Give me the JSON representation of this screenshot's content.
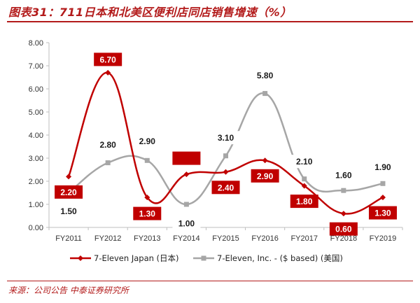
{
  "title": "图表31：711日本和北美区便利店同店销售增速（%）",
  "source": "来源：公司公告 中泰证券研究所",
  "colors": {
    "japan": "#c00000",
    "us": "#a6a6a6",
    "accent": "#b31b1b"
  },
  "chart_data": {
    "type": "line",
    "categories": [
      "FY2011",
      "FY2012",
      "FY2013",
      "FY2014",
      "FY2015",
      "FY2016",
      "FY2017",
      "FY2018",
      "FY2019"
    ],
    "ylim": [
      0,
      8
    ],
    "yticks": [
      "0.00",
      "1.00",
      "2.00",
      "3.00",
      "4.00",
      "5.00",
      "6.00",
      "7.00",
      "8.00"
    ],
    "grid": false,
    "legend_position": "bottom",
    "series": [
      {
        "name": "7-Eleven Japan (日本)",
        "values": [
          2.2,
          6.7,
          1.3,
          2.3,
          2.4,
          2.9,
          1.8,
          0.6,
          1.3
        ],
        "labels": [
          "2.20",
          "6.70",
          "1.30",
          "",
          "2.40",
          "2.90",
          "1.80",
          "0.60",
          "1.30"
        ]
      },
      {
        "name": "7-Eleven, Inc. - ($ based)  (美国)",
        "values": [
          1.5,
          2.8,
          2.9,
          1.0,
          3.1,
          5.8,
          2.1,
          1.6,
          1.9
        ],
        "labels": [
          "1.50",
          "2.80",
          "2.90",
          "1.00",
          "3.10",
          "5.80",
          "2.10",
          "1.60",
          "1.90"
        ]
      }
    ]
  }
}
